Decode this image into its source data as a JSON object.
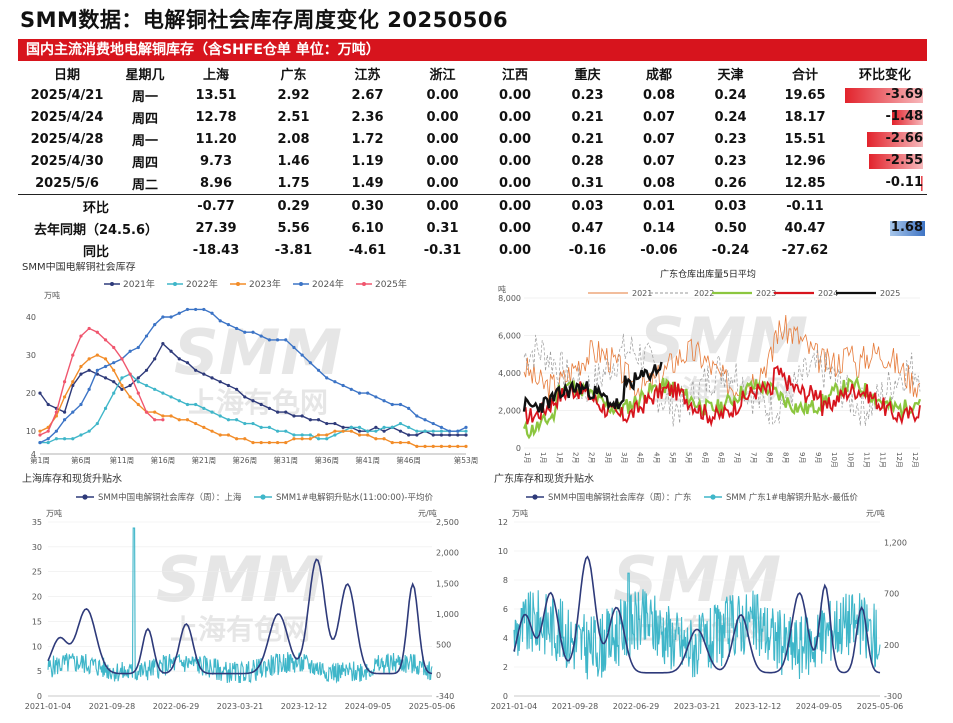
{
  "title": "SMM数据：电解铜社会库存周度变化 20250506",
  "table": {
    "banner": "国内主流消费地电解铜库存（含SHFE仓单 单位：万吨）",
    "headers": [
      "日期",
      "星期几",
      "上海",
      "广东",
      "江苏",
      "浙江",
      "江西",
      "重庆",
      "成都",
      "天津",
      "合计",
      "环比变化"
    ],
    "rows": [
      {
        "date": "2025/4/21",
        "weekday": "周一",
        "vals": [
          "13.51",
          "2.92",
          "2.67",
          "0.00",
          "0.00",
          "0.23",
          "0.08",
          "0.24",
          "19.65"
        ],
        "chg": "-3.69",
        "chgv": -3.69
      },
      {
        "date": "2025/4/24",
        "weekday": "周四",
        "vals": [
          "12.78",
          "2.51",
          "2.36",
          "0.00",
          "0.00",
          "0.21",
          "0.07",
          "0.24",
          "18.17"
        ],
        "chg": "-1.48",
        "chgv": -1.48
      },
      {
        "date": "2025/4/28",
        "weekday": "周一",
        "vals": [
          "11.20",
          "2.08",
          "1.72",
          "0.00",
          "0.00",
          "0.21",
          "0.07",
          "0.23",
          "15.51"
        ],
        "chg": "-2.66",
        "chgv": -2.66
      },
      {
        "date": "2025/4/30",
        "weekday": "周四",
        "vals": [
          "9.73",
          "1.46",
          "1.19",
          "0.00",
          "0.00",
          "0.28",
          "0.07",
          "0.23",
          "12.96"
        ],
        "chg": "-2.55",
        "chgv": -2.55
      },
      {
        "date": "2025/5/6",
        "weekday": "周二",
        "vals": [
          "8.96",
          "1.75",
          "1.49",
          "0.00",
          "0.00",
          "0.31",
          "0.08",
          "0.26",
          "12.85"
        ],
        "chg": "-0.11",
        "chgv": -0.11
      }
    ],
    "wow": {
      "label": "环比",
      "vals": [
        "-0.77",
        "0.29",
        "0.30",
        "0.00",
        "0.00",
        "0.03",
        "0.01",
        "0.03",
        "-0.11"
      ]
    },
    "lastyear": {
      "label": "去年同期（24.5.6）",
      "vals": [
        "27.39",
        "5.56",
        "6.10",
        "0.31",
        "0.00",
        "0.47",
        "0.14",
        "0.50",
        "40.47"
      ],
      "chg": "1.68",
      "chgv": 1.68
    },
    "yoy": {
      "label": "同比",
      "vals": [
        "-18.43",
        "-3.81",
        "-4.61",
        "-0.31",
        "0.00",
        "-0.16",
        "-0.06",
        "-0.24",
        "-27.62"
      ]
    }
  },
  "watermark": {
    "logo": "SMM",
    "cn": "上海有色网"
  },
  "chart_data": [
    {
      "type": "line",
      "title": "SMM中国电解铜社会库存",
      "unit": "万吨",
      "ylim": [
        4,
        45
      ],
      "yticks": [
        4,
        10,
        20,
        30,
        40
      ],
      "xticks": [
        "第1周",
        "第6周",
        "第11周",
        "第16周",
        "第21周",
        "第26周",
        "第31周",
        "第36周",
        "第41周",
        "第46周",
        "第53周"
      ],
      "series": [
        {
          "name": "2021年",
          "color": "#2e3a7a",
          "values": [
            20,
            17,
            16,
            15,
            22,
            25,
            26,
            25,
            24,
            23,
            21,
            22,
            24,
            26,
            29,
            33,
            31,
            29,
            28,
            26,
            25,
            24,
            23,
            22,
            21,
            19,
            18,
            17,
            16,
            15,
            15,
            14,
            14,
            13,
            13,
            12,
            12,
            11,
            11,
            10,
            10,
            11,
            10,
            11,
            10,
            9,
            9,
            10,
            9,
            9,
            9,
            9,
            9
          ]
        },
        {
          "name": "2022年",
          "color": "#3fb6c9",
          "values": [
            7,
            7,
            8,
            8,
            8,
            9,
            10,
            12,
            16,
            20,
            24,
            25,
            23,
            22,
            21,
            20,
            19,
            18,
            17,
            17,
            16,
            15,
            14,
            13,
            13,
            12,
            12,
            11,
            11,
            10,
            10,
            9,
            9,
            9,
            8,
            8,
            9,
            10,
            11,
            11,
            10,
            10,
            11,
            11,
            12,
            11,
            10,
            10,
            10,
            10,
            10,
            10,
            10
          ]
        },
        {
          "name": "2023年",
          "color": "#f28c28",
          "values": [
            10,
            11,
            14,
            19,
            23,
            27,
            29,
            30,
            29,
            26,
            22,
            19,
            17,
            15,
            15,
            14,
            14,
            13,
            13,
            12,
            11,
            10,
            9,
            9,
            8,
            8,
            7,
            7,
            7,
            7,
            7,
            8,
            8,
            8,
            9,
            9,
            10,
            10,
            10,
            9,
            9,
            8,
            8,
            7,
            7,
            7,
            6,
            6,
            6,
            6,
            6,
            6,
            6
          ]
        },
        {
          "name": "2024年",
          "color": "#3c74c6",
          "values": [
            7,
            8,
            10,
            13,
            15,
            17,
            21,
            26,
            27,
            28,
            29,
            31,
            32,
            35,
            38,
            40,
            40,
            41,
            42,
            42,
            42,
            41,
            39,
            38,
            37,
            36,
            36,
            35,
            34,
            34,
            34,
            32,
            30,
            28,
            26,
            24,
            23,
            22,
            21,
            20,
            20,
            19,
            18,
            17,
            17,
            16,
            14,
            13,
            12,
            11,
            10,
            10,
            11
          ]
        },
        {
          "name": "2025年",
          "color": "#f0566e",
          "values": [
            9,
            10,
            15,
            23,
            30,
            35,
            37,
            36,
            34,
            32,
            29,
            25,
            20,
            15,
            13,
            13
          ]
        }
      ]
    },
    {
      "type": "line",
      "title": "广东仓库出库量5日平均",
      "unit": "吨",
      "ylim": [
        0,
        8000
      ],
      "yticks": [
        "0",
        "2,000",
        "4,000",
        "6,000",
        "8,000"
      ],
      "xticks": [
        "1月",
        "1月",
        "1月",
        "2月",
        "2月",
        "3月",
        "3月",
        "4月",
        "4月",
        "5月",
        "5月",
        "6月",
        "6月",
        "7月",
        "7月",
        "8月",
        "8月",
        "9月",
        "9月",
        "10月",
        "10月",
        "11月",
        "11月",
        "12月",
        "12月"
      ],
      "series": [
        {
          "name": "2021",
          "color": "#e67b3a",
          "dash": ""
        },
        {
          "name": "2022",
          "color": "#999999",
          "dash": "3,2"
        },
        {
          "name": "2023",
          "color": "#8cc63f",
          "dash": ""
        },
        {
          "name": "2024",
          "color": "#d7141d",
          "dash": ""
        },
        {
          "name": "2025",
          "color": "#111111",
          "dash": ""
        }
      ]
    },
    {
      "type": "line",
      "title": "上海库存和现货升贴水",
      "left_unit": "万吨",
      "right_unit": "元/吨",
      "left_ylim": [
        0,
        35
      ],
      "left_ticks": [
        0,
        5,
        10,
        15,
        20,
        25,
        30,
        35
      ],
      "right_ylim": [
        -340,
        2500
      ],
      "right_ticks": [
        "-340",
        "0",
        "500",
        "1,000",
        "1,500",
        "2,000",
        "2,500"
      ],
      "xticks": [
        "2021-01-04",
        "2021-09-28",
        "2022-06-29",
        "2023-03-21",
        "2023-12-12",
        "2024-09-05",
        "2025-05-06"
      ],
      "series": [
        {
          "name": "SMM中国电解铜社会库存（周）：上海",
          "color": "#2e3a7a"
        },
        {
          "name": "SMM1#电解铜升贴水(11:00:00)-平均价",
          "color": "#3fb6c9"
        }
      ]
    },
    {
      "type": "line",
      "title": "广东库存和现货升贴水",
      "left_unit": "万吨",
      "right_unit": "元/吨",
      "left_ylim": [
        0,
        12
      ],
      "left_ticks": [
        0,
        2,
        4,
        6,
        8,
        10,
        12
      ],
      "right_ylim": [
        -300,
        1400
      ],
      "right_ticks": [
        "-300",
        "200",
        "700",
        "1,200"
      ],
      "xticks": [
        "2021-01-04",
        "2021-09-28",
        "2022-06-29",
        "2023-03-21",
        "2023-12-12",
        "2024-09-05",
        "2025-05-06"
      ],
      "series": [
        {
          "name": "SMM中国电解铜社会库存（周）：广东",
          "color": "#2e3a7a"
        },
        {
          "name": "SMM 广东1#电解铜升贴水-最低价",
          "color": "#3fb6c9"
        }
      ]
    }
  ]
}
